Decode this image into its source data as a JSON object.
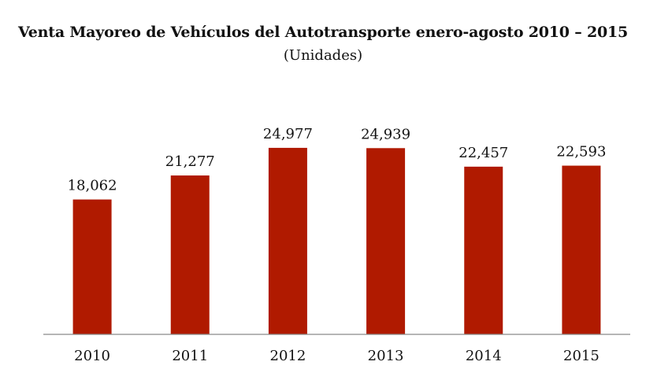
{
  "chart_data": {
    "type": "bar",
    "title": "Venta Mayoreo de Vehículos del Autotransporte enero-agosto 2010 – 2015",
    "subtitle": "(Unidades)",
    "categories": [
      "2010",
      "2011",
      "2012",
      "2013",
      "2014",
      "2015"
    ],
    "values": [
      18062,
      21277,
      24977,
      24939,
      22457,
      22593
    ],
    "value_labels": [
      "18,062",
      "21,277",
      "24,977",
      "24,939",
      "22,457",
      "22,593"
    ],
    "xlabel": "",
    "ylabel": "",
    "ylim": [
      0,
      29500
    ],
    "grid": false,
    "legend": "none",
    "bar_color": "#b01a00"
  }
}
